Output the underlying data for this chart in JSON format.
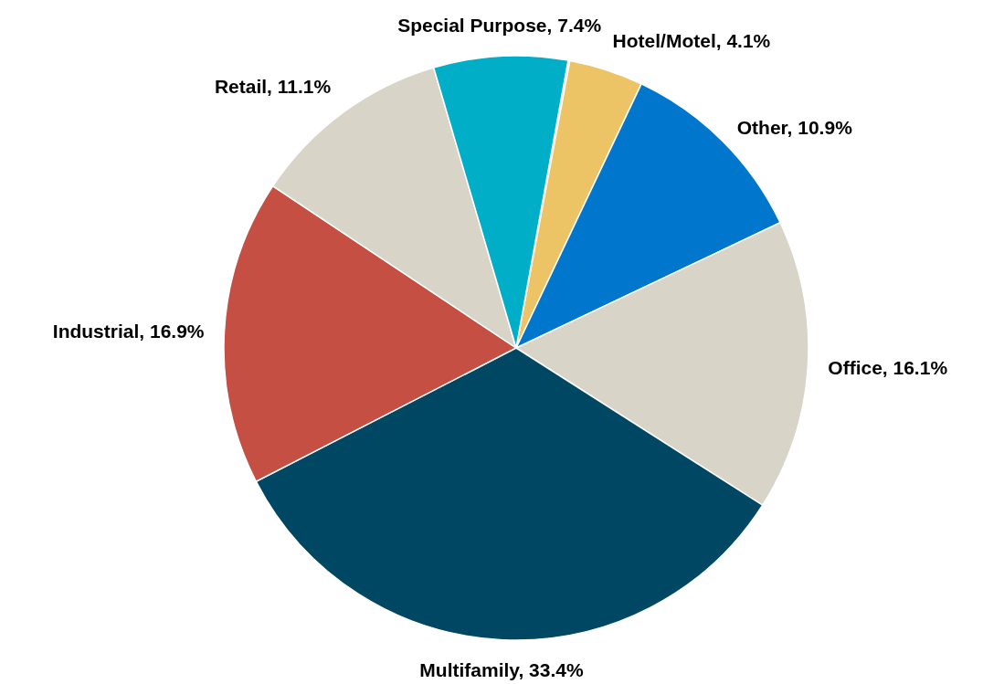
{
  "chart_data": {
    "type": "pie",
    "categories": [
      "Hotel/Motel",
      "Other",
      "Office",
      "Multifamily",
      "Industrial",
      "Retail",
      "Special Purpose"
    ],
    "values": [
      4.1,
      10.9,
      16.1,
      33.4,
      16.9,
      11.1,
      7.4
    ],
    "colors": [
      "#ecc466",
      "#0077cc",
      "#d8d5c8",
      "#004763",
      "#c64f43",
      "#d8d5c8",
      "#00aec8"
    ],
    "value_labels": [
      ", 4.1%",
      ", 10.9%",
      ", 16.1%",
      ", 33.4%",
      ", 16.9%",
      ", 11.1%",
      ", 7.4%"
    ]
  }
}
